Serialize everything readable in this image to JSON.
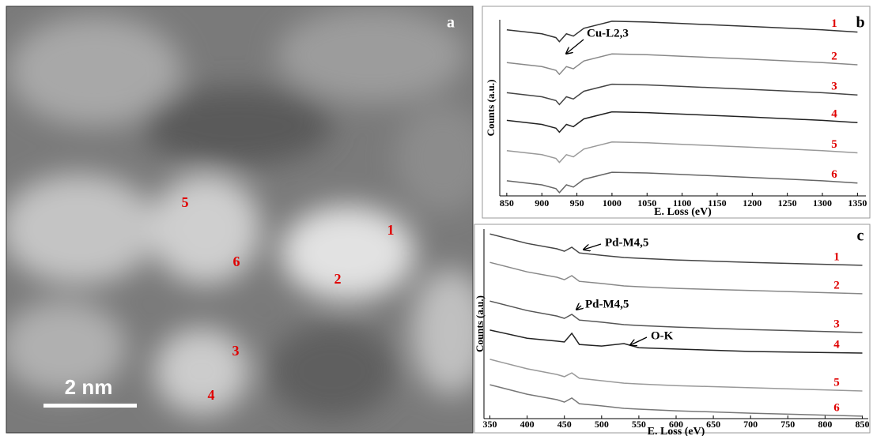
{
  "chart_data": [
    {
      "type": "image",
      "label": "a",
      "scale_bar": "2 nm",
      "points": [
        "1",
        "2",
        "3",
        "4",
        "5",
        "6"
      ]
    },
    {
      "type": "line",
      "label": "b",
      "y_label": "Counts (a.u.)",
      "x_label": "E. Loss (eV)",
      "xlim": [
        840,
        1362
      ],
      "xticks": [
        850,
        900,
        950,
        1000,
        1050,
        1100,
        1150,
        1200,
        1250,
        1300,
        1350
      ],
      "ylim": [
        0,
        7
      ],
      "label_color": "#e00000",
      "annotations": [
        {
          "text": "Cu-L2,3"
        }
      ],
      "x": [
        850,
        900,
        920,
        925,
        935,
        945,
        960,
        1000,
        1050,
        1100,
        1200,
        1300,
        1350
      ],
      "series": [
        {
          "name": "1",
          "color": "#333333",
          "values": [
            6.6,
            6.44,
            6.29,
            6.13,
            6.44,
            6.35,
            6.66,
            6.94,
            6.91,
            6.85,
            6.73,
            6.6,
            6.51
          ]
        },
        {
          "name": "2",
          "color": "#888888",
          "values": [
            5.3,
            5.14,
            4.99,
            4.83,
            5.14,
            5.05,
            5.36,
            5.64,
            5.61,
            5.55,
            5.43,
            5.3,
            5.21
          ]
        },
        {
          "name": "3",
          "color": "#444444",
          "values": [
            4.1,
            3.94,
            3.79,
            3.63,
            3.94,
            3.85,
            4.16,
            4.44,
            4.41,
            4.35,
            4.23,
            4.1,
            4.01
          ]
        },
        {
          "name": "4",
          "color": "#222222",
          "values": [
            3.0,
            2.84,
            2.69,
            2.53,
            2.84,
            2.75,
            3.06,
            3.34,
            3.31,
            3.25,
            3.13,
            3.0,
            2.91
          ]
        },
        {
          "name": "5",
          "color": "#999999",
          "values": [
            1.8,
            1.64,
            1.49,
            1.33,
            1.64,
            1.55,
            1.86,
            2.14,
            2.11,
            2.05,
            1.93,
            1.8,
            1.71
          ]
        },
        {
          "name": "6",
          "color": "#666666",
          "values": [
            0.6,
            0.44,
            0.29,
            0.13,
            0.44,
            0.35,
            0.66,
            0.94,
            0.91,
            0.85,
            0.73,
            0.6,
            0.51
          ]
        }
      ]
    },
    {
      "type": "line",
      "label": "c",
      "y_label": "Counts (a.u.)",
      "x_label": "E. Loss (eV)",
      "xlim": [
        342,
        858
      ],
      "xticks": [
        350,
        400,
        450,
        500,
        550,
        600,
        650,
        700,
        750,
        800,
        850
      ],
      "ylim": [
        0,
        7
      ],
      "label_color": "#e00000",
      "annotations": [
        {
          "text": "Pd-M4,5"
        },
        {
          "text": "Pd-M4,5"
        },
        {
          "text": "O-K"
        }
      ],
      "x": [
        350,
        400,
        440,
        450,
        460,
        470,
        500,
        530,
        550,
        600,
        700,
        850
      ],
      "series": [
        {
          "name": "1",
          "color": "#444444",
          "values": [
            6.82,
            6.47,
            6.27,
            6.18,
            6.33,
            6.12,
            6.03,
            5.95,
            5.92,
            5.86,
            5.77,
            5.66
          ]
        },
        {
          "name": "2",
          "color": "#888888",
          "values": [
            5.77,
            5.42,
            5.22,
            5.13,
            5.28,
            5.07,
            4.99,
            4.9,
            4.87,
            4.81,
            4.73,
            4.61
          ]
        },
        {
          "name": "3",
          "color": "#555555",
          "values": [
            4.34,
            3.99,
            3.79,
            3.7,
            3.85,
            3.64,
            3.56,
            3.47,
            3.44,
            3.38,
            3.29,
            3.18
          ]
        },
        {
          "name": "4",
          "color": "#222222",
          "values": [
            3.27,
            2.97,
            2.86,
            2.83,
            3.15,
            2.74,
            2.68,
            2.77,
            2.62,
            2.57,
            2.48,
            2.42
          ]
        },
        {
          "name": "5",
          "color": "#999999",
          "values": [
            2.19,
            1.84,
            1.63,
            1.55,
            1.69,
            1.49,
            1.4,
            1.31,
            1.28,
            1.22,
            1.14,
            1.02
          ]
        },
        {
          "name": "6",
          "color": "#777777",
          "values": [
            1.25,
            0.9,
            0.7,
            0.61,
            0.76,
            0.55,
            0.47,
            0.38,
            0.35,
            0.29,
            0.2,
            0.09
          ]
        }
      ]
    }
  ]
}
